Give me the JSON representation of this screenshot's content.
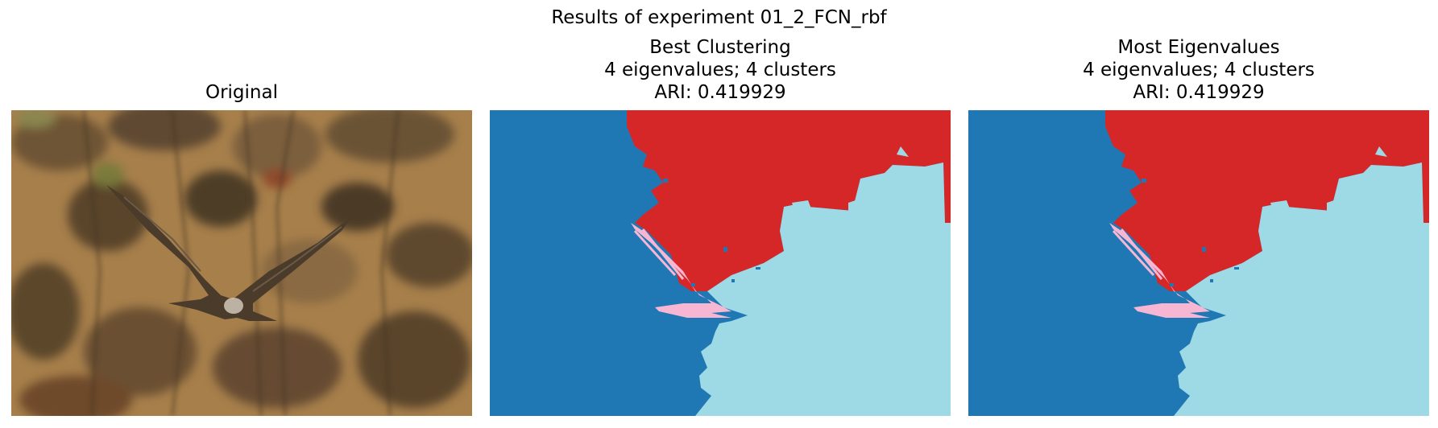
{
  "figure": {
    "suptitle": "Results of experiment 01_2_FCN_rbf"
  },
  "panels": [
    {
      "title_lines": [
        "Original"
      ],
      "kind": "photo",
      "content": "blurred photo of a hawk in flight over brown brush"
    },
    {
      "title_lines": [
        "Best Clustering",
        "4 eigenvalues; 4 clusters",
        "ARI: 0.419929"
      ],
      "kind": "segmentation"
    },
    {
      "title_lines": [
        "Most Eigenvalues",
        "4 eigenvalues; 4 clusters",
        "ARI: 0.419929"
      ],
      "kind": "segmentation"
    }
  ],
  "cluster_colors": {
    "cluster_1": "#1f77b4",
    "cluster_2": "#d62728",
    "cluster_3": "#9edae5",
    "cluster_4": "#f7b6d2"
  },
  "photo_colors": {
    "background": "#a77f4b",
    "dark": "#3f3221",
    "bird": "#4a3b2b",
    "bird_light": "#d8d0c0"
  }
}
